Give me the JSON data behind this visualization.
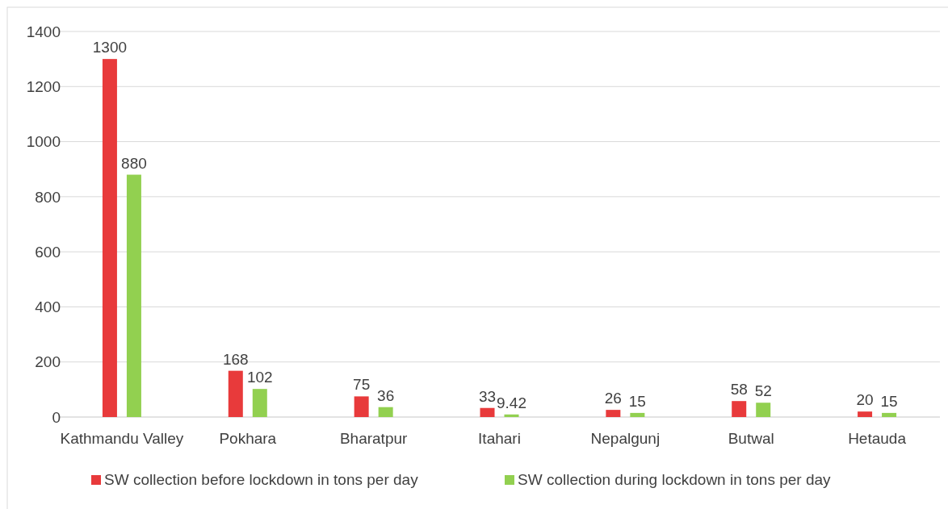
{
  "chart_data": {
    "type": "bar",
    "categories": [
      "Kathmandu Valley",
      "Pokhara",
      "Bharatpur",
      "Itahari",
      "Nepalgunj",
      "Butwal",
      "Hetauda"
    ],
    "series": [
      {
        "name": "SW collection before lockdown in tons per day",
        "color": "#e83a3b",
        "values": [
          1300,
          168,
          75,
          33,
          26,
          58,
          20
        ]
      },
      {
        "name": "SW collection during lockdown in tons per day",
        "color": "#92d050",
        "values": [
          880,
          102,
          36,
          9.42,
          15,
          52,
          15
        ]
      }
    ],
    "ylim": [
      0,
      1400
    ],
    "yticks": [
      0,
      200,
      400,
      600,
      800,
      1000,
      1200,
      1400
    ],
    "grid": "y",
    "legend": "bottom",
    "data_labels": true
  }
}
